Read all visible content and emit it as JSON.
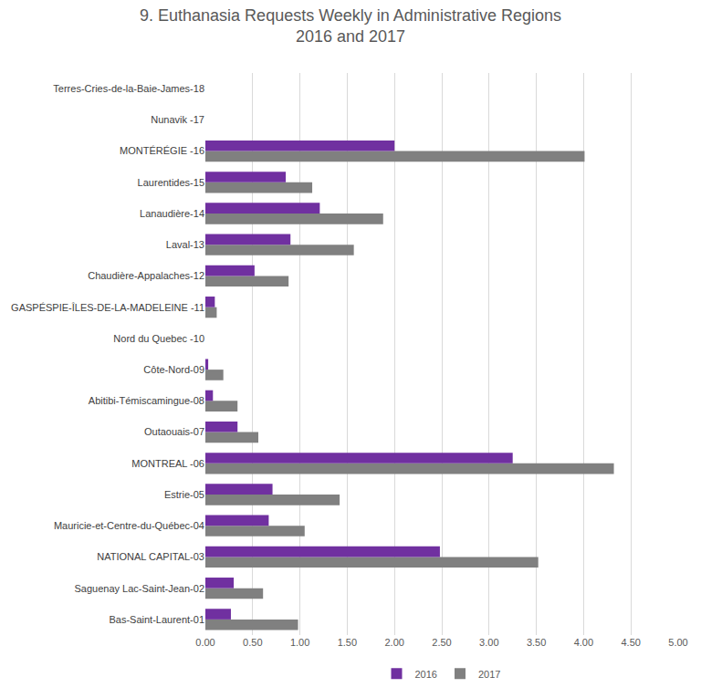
{
  "chart_data": {
    "type": "bar",
    "orientation": "horizontal",
    "title": "9. Euthanasia Requests Weekly in Administrative Regions\n2016 and 2017",
    "categories": [
      "Bas-Saint-Laurent-01",
      "Saguenay Lac-Saint-Jean-02",
      "NATIONAL CAPITAL-03",
      "Mauricie-et-Centre-du-Québec-04",
      "Estrie-05",
      "MONTREAL -06",
      "Outaouais-07",
      "Abitibi-Témiscamingue-08",
      "Côte-Nord-09",
      "Nord du Quebec -10",
      "GASPÉSPIE-ÎLES-DE-LA-MADELEINE -11",
      "Chaudière-Appalaches-12",
      "Laval-13",
      "Lanaudière-14",
      "Laurentides-15",
      "MONTÉRÉGIE -16",
      "Nunavik -17",
      "Terres-Cries-de-la-Baie-James-18"
    ],
    "series": [
      {
        "name": "2016",
        "color": "#7030a0",
        "values": [
          0.27,
          0.3,
          2.48,
          0.67,
          0.71,
          3.25,
          0.34,
          0.08,
          0.03,
          0,
          0.1,
          0.52,
          0.9,
          1.21,
          0.85,
          2.0,
          0,
          0
        ]
      },
      {
        "name": "2017",
        "color": "#808080",
        "values": [
          0.98,
          0.61,
          3.52,
          1.05,
          1.42,
          4.32,
          0.56,
          0.34,
          0.19,
          0,
          0.12,
          0.88,
          1.57,
          1.88,
          1.13,
          4.01,
          0,
          0
        ]
      }
    ],
    "xlim": [
      0,
      5
    ],
    "xticks": [
      {
        "value": 0,
        "label": "0.00"
      },
      {
        "value": 0.5,
        "label": "0.50"
      },
      {
        "value": 1,
        "label": "1.00"
      },
      {
        "value": 1.5,
        "label": "1.50"
      },
      {
        "value": 2,
        "label": "2.00"
      },
      {
        "value": 2.5,
        "label": "2.50"
      },
      {
        "value": 3,
        "label": "3.00"
      },
      {
        "value": 3.5,
        "label": "3.50"
      },
      {
        "value": 4,
        "label": "4.00"
      },
      {
        "value": 4.5,
        "label": "4.50"
      },
      {
        "value": 5,
        "label": "5.00"
      }
    ],
    "grid": true,
    "legend": "bottom"
  }
}
